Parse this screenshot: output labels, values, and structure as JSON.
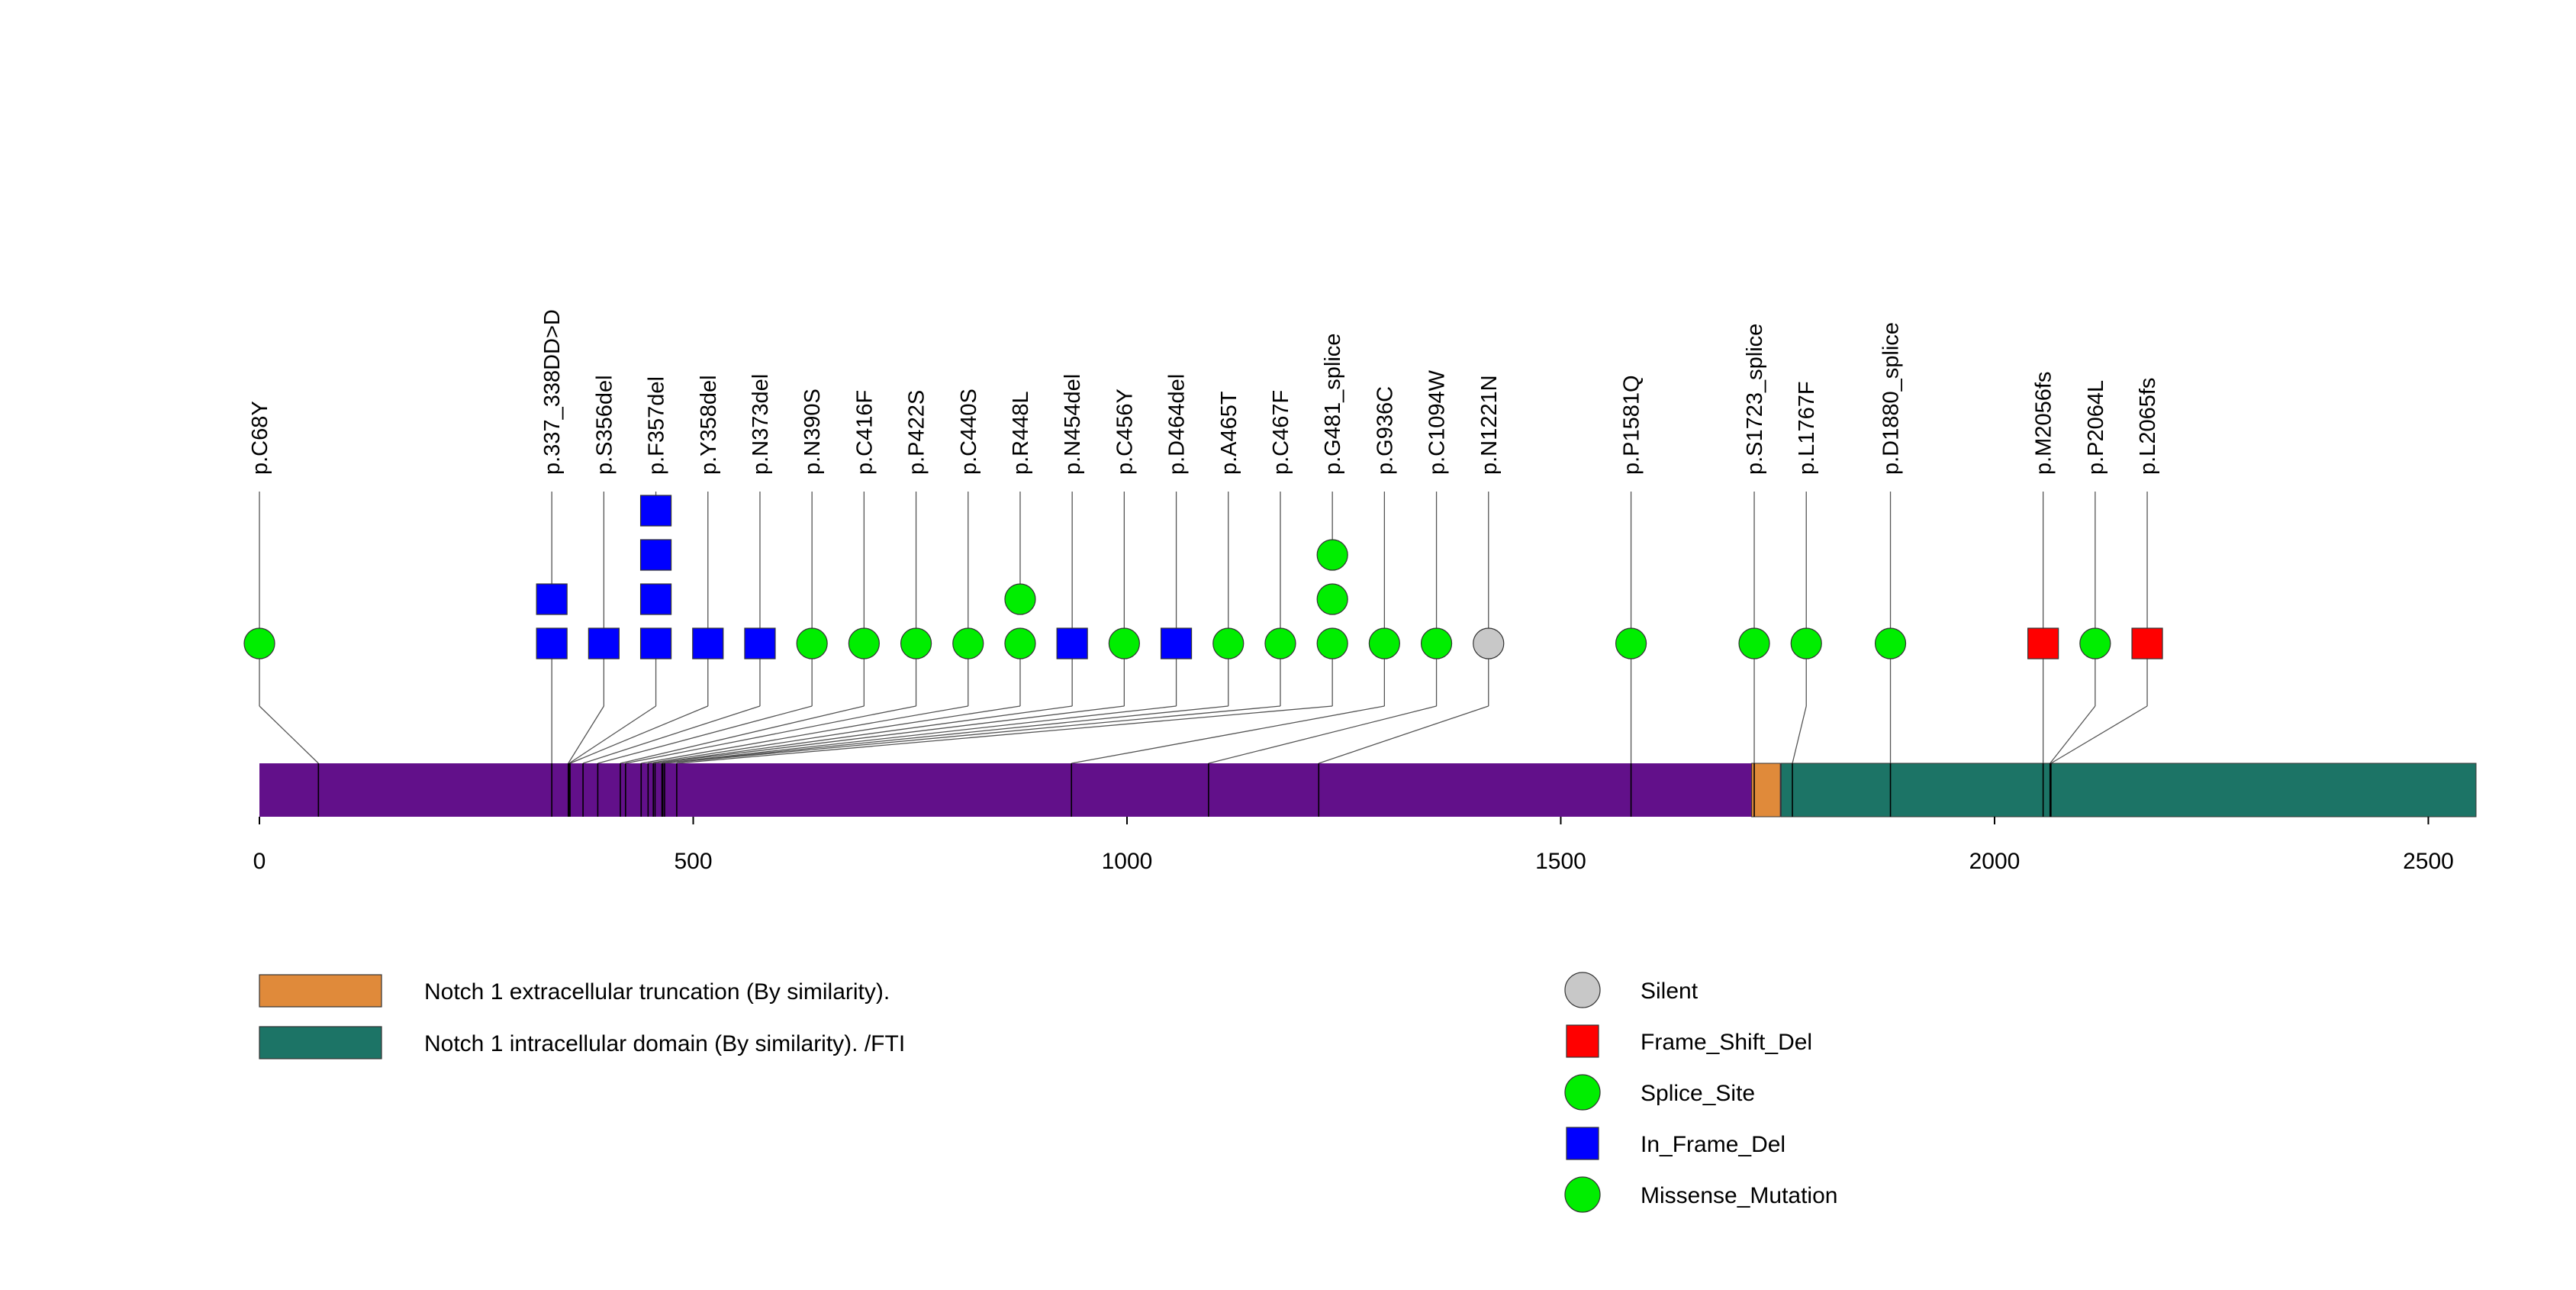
{
  "chart_data": {
    "type": "lollipop",
    "protein_length": 2555,
    "xlim": [
      0,
      2555
    ],
    "x_ticks": [
      0,
      500,
      1000,
      1500,
      2000,
      2500
    ],
    "backbone_color": "#62108A",
    "domains": [
      {
        "name": "Notch 1 extracellular truncation (By similarity).",
        "start": 1720,
        "end": 1753,
        "color": "#E08A3A"
      },
      {
        "name": "Notch 1 intracellular domain (By similarity). /FTI",
        "start": 1754,
        "end": 2555,
        "color": "#1C7466"
      }
    ],
    "mutation_types": [
      {
        "name": "Silent",
        "shape": "circle",
        "color": "#C8C8C8"
      },
      {
        "name": "Frame_Shift_Del",
        "shape": "square",
        "color": "#FF0000"
      },
      {
        "name": "Splice_Site",
        "shape": "circle",
        "color": "#00EE00"
      },
      {
        "name": "In_Frame_Del",
        "shape": "square",
        "color": "#0000FF"
      },
      {
        "name": "Missense_Mutation",
        "shape": "circle",
        "color": "#00EE00"
      }
    ],
    "mutations": [
      {
        "label": "p.C68Y",
        "pos": 68,
        "markers": [
          "Missense_Mutation"
        ]
      },
      {
        "label": "p.337_338DD>D",
        "pos": 337,
        "markers": [
          "In_Frame_Del",
          "In_Frame_Del"
        ]
      },
      {
        "label": "p.S356del",
        "pos": 356,
        "markers": [
          "In_Frame_Del"
        ]
      },
      {
        "label": "p.F357del",
        "pos": 357,
        "markers": [
          "In_Frame_Del",
          "In_Frame_Del",
          "In_Frame_Del",
          "In_Frame_Del"
        ]
      },
      {
        "label": "p.Y358del",
        "pos": 358,
        "markers": [
          "In_Frame_Del"
        ]
      },
      {
        "label": "p.N373del",
        "pos": 373,
        "markers": [
          "In_Frame_Del"
        ]
      },
      {
        "label": "p.N390S",
        "pos": 390,
        "markers": [
          "Missense_Mutation"
        ]
      },
      {
        "label": "p.C416F",
        "pos": 416,
        "markers": [
          "Missense_Mutation"
        ]
      },
      {
        "label": "p.P422S",
        "pos": 422,
        "markers": [
          "Missense_Mutation"
        ]
      },
      {
        "label": "p.C440S",
        "pos": 440,
        "markers": [
          "Missense_Mutation"
        ]
      },
      {
        "label": "p.R448L",
        "pos": 448,
        "markers": [
          "Missense_Mutation",
          "Missense_Mutation"
        ]
      },
      {
        "label": "p.N454del",
        "pos": 454,
        "markers": [
          "In_Frame_Del"
        ]
      },
      {
        "label": "p.C456Y",
        "pos": 456,
        "markers": [
          "Missense_Mutation"
        ]
      },
      {
        "label": "p.D464del",
        "pos": 464,
        "markers": [
          "In_Frame_Del"
        ]
      },
      {
        "label": "p.A465T",
        "pos": 465,
        "markers": [
          "Missense_Mutation"
        ]
      },
      {
        "label": "p.C467F",
        "pos": 467,
        "markers": [
          "Missense_Mutation"
        ]
      },
      {
        "label": "p.G481_splice",
        "pos": 481,
        "markers": [
          "Splice_Site",
          "Splice_Site",
          "Splice_Site"
        ]
      },
      {
        "label": "p.G936C",
        "pos": 936,
        "markers": [
          "Missense_Mutation"
        ]
      },
      {
        "label": "p.C1094W",
        "pos": 1094,
        "markers": [
          "Missense_Mutation"
        ]
      },
      {
        "label": "p.N1221N",
        "pos": 1221,
        "markers": [
          "Silent"
        ]
      },
      {
        "label": "p.P1581Q",
        "pos": 1581,
        "markers": [
          "Missense_Mutation"
        ]
      },
      {
        "label": "p.S1723_splice",
        "pos": 1723,
        "markers": [
          "Splice_Site"
        ]
      },
      {
        "label": "p.L1767F",
        "pos": 1767,
        "markers": [
          "Missense_Mutation"
        ]
      },
      {
        "label": "p.D1880_splice",
        "pos": 1880,
        "markers": [
          "Splice_Site"
        ]
      },
      {
        "label": "p.M2056fs",
        "pos": 2056,
        "markers": [
          "Frame_Shift_Del"
        ]
      },
      {
        "label": "p.P2064L",
        "pos": 2064,
        "markers": [
          "Missense_Mutation"
        ]
      },
      {
        "label": "p.L2065fs",
        "pos": 2065,
        "markers": [
          "Frame_Shift_Del"
        ]
      }
    ]
  }
}
